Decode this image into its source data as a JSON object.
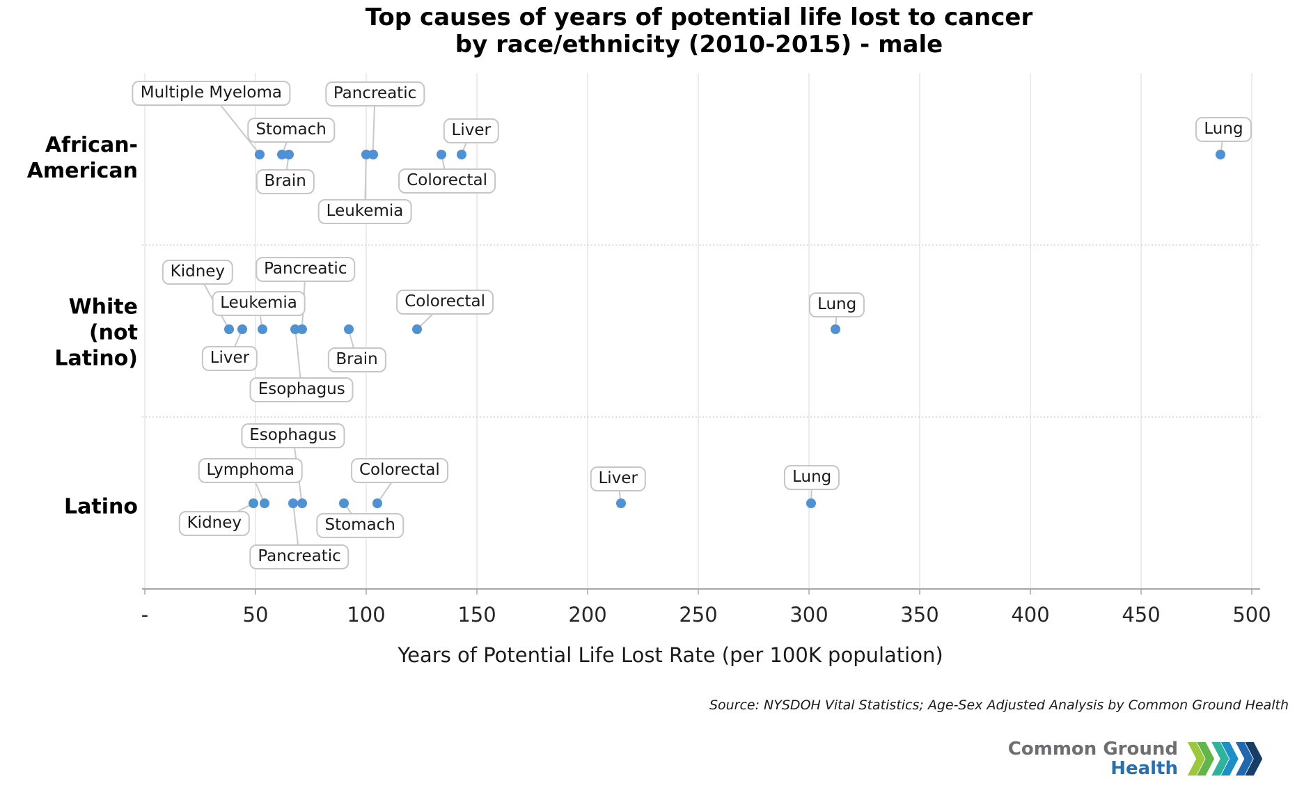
{
  "title": {
    "line1": "Top causes of years of potential life lost to cancer",
    "line2": "by race/ethnicity (2010-2015) - male"
  },
  "source_note": "Source: NYSDOH Vital Statistics; Age-Sex Adjusted Analysis by Common Ground Health",
  "logo": {
    "line1": "Common Ground",
    "line2": "Health",
    "chevron_colors": [
      "#9dc73d",
      "#62b54a",
      "#2eb49c",
      "#1e8fc6",
      "#2268ae",
      "#173f66"
    ]
  },
  "colors": {
    "dot": "#4f91d3",
    "leader": "#c9c9c9",
    "grid": "#d9d9d9",
    "separator": "#bdbdbd",
    "axis": "#a6a6a6",
    "label_border": "#c6c6c6",
    "text": "#1a1a1a"
  },
  "chart_data": {
    "type": "scatter",
    "title": "Top causes of years of potential life lost to cancer by race/ethnicity (2010-2015) - male",
    "xlabel": "Years of Potential Life Lost Rate (per 100K population)",
    "ylabel": "",
    "xlim": [
      0,
      500
    ],
    "x_ticks": [
      "-",
      "50",
      "100",
      "150",
      "200",
      "250",
      "300",
      "350",
      "400",
      "450",
      "500"
    ],
    "grid": "vertical",
    "legend": "none",
    "categories": [
      "African-American",
      "White (not Latino)",
      "Latino"
    ],
    "series": [
      {
        "category": "African-American",
        "category_lines": [
          "African-",
          "American"
        ],
        "points": [
          {
            "label": "Multiple Myeloma",
            "value": 52,
            "dx": -70,
            "dy": -88
          },
          {
            "label": "Stomach",
            "value": 62,
            "dx": 13,
            "dy": -35
          },
          {
            "label": "Brain",
            "value": 65,
            "dx": -5,
            "dy": 39
          },
          {
            "label": "Leukemia",
            "value": 100,
            "dx": -2,
            "dy": 82
          },
          {
            "label": "Pancreatic",
            "value": 103,
            "dx": 3,
            "dy": -87
          },
          {
            "label": "Colorectal",
            "value": 134,
            "dx": 8,
            "dy": 38
          },
          {
            "label": "Liver",
            "value": 143,
            "dx": 14,
            "dy": -34
          },
          {
            "label": "Lung",
            "value": 486,
            "dx": 4,
            "dy": -36
          }
        ]
      },
      {
        "category": "White (not Latino)",
        "category_lines": [
          "White",
          "(not Latino)"
        ],
        "points": [
          {
            "label": "Kidney",
            "value": 38,
            "dx": -45,
            "dy": -82
          },
          {
            "label": "Liver",
            "value": 44,
            "dx": -18,
            "dy": 42
          },
          {
            "label": "Leukemia",
            "value": 53,
            "dx": -5,
            "dy": -37
          },
          {
            "label": "Esophagus",
            "value": 68,
            "dx": 9,
            "dy": 87
          },
          {
            "label": "Pancreatic",
            "value": 71,
            "dx": 5,
            "dy": -86
          },
          {
            "label": "Brain",
            "value": 92,
            "dx": 12,
            "dy": 44
          },
          {
            "label": "Colorectal",
            "value": 123,
            "dx": 40,
            "dy": -39
          },
          {
            "label": "Lung",
            "value": 312,
            "dx": 2,
            "dy": -35
          }
        ]
      },
      {
        "category": "Latino",
        "category_lines": [
          "Latino"
        ],
        "points": [
          {
            "label": "Kidney",
            "value": 49,
            "dx": -56,
            "dy": 29
          },
          {
            "label": "Lymphoma",
            "value": 54,
            "dx": -20,
            "dy": -47
          },
          {
            "label": "Pancreatic",
            "value": 67,
            "dx": 9,
            "dy": 77
          },
          {
            "label": "Esophagus",
            "value": 71,
            "dx": -13,
            "dy": -97
          },
          {
            "label": "Stomach",
            "value": 90,
            "dx": 23,
            "dy": 32
          },
          {
            "label": "Colorectal",
            "value": 105,
            "dx": 32,
            "dy": -47
          },
          {
            "label": "Liver",
            "value": 215,
            "dx": -4,
            "dy": -35
          },
          {
            "label": "Lung",
            "value": 301,
            "dx": 1,
            "dy": -37
          }
        ]
      }
    ]
  }
}
